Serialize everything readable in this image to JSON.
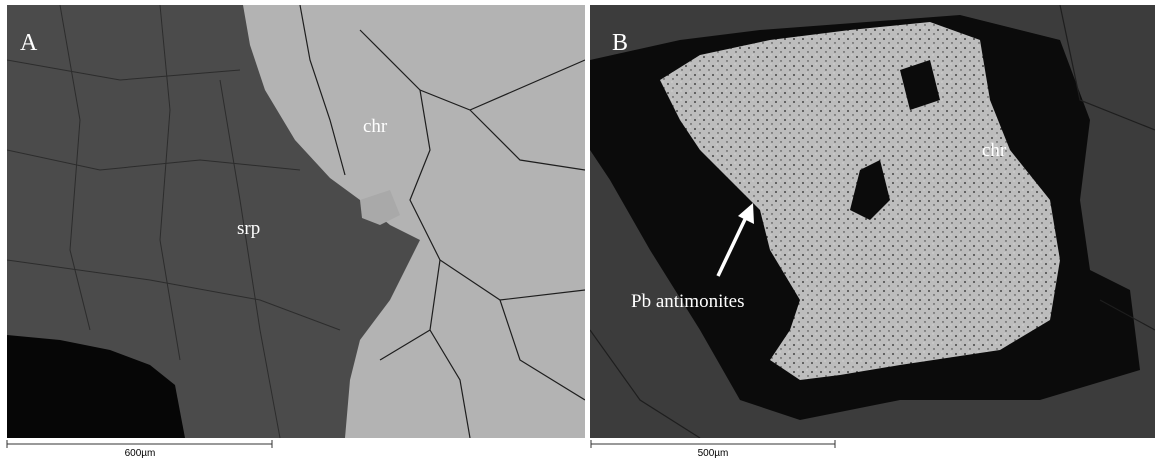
{
  "panels": [
    {
      "label": "A",
      "annotations": [
        "chr",
        "srp"
      ],
      "scale_bar": "600µm"
    },
    {
      "label": "B",
      "annotations": [
        "chr",
        "Pb antimonites"
      ],
      "scale_bar": "500µm"
    }
  ]
}
